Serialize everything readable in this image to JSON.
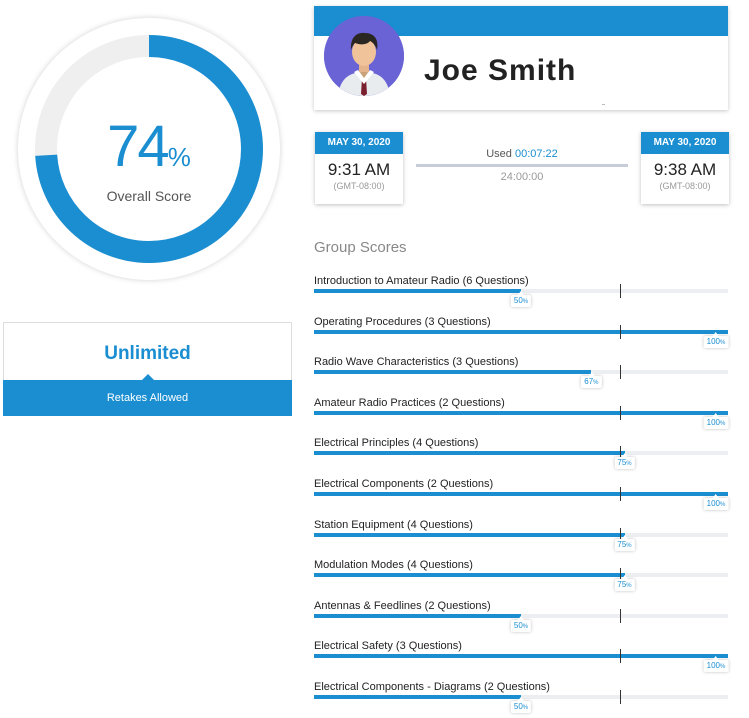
{
  "overall": {
    "value": "74",
    "percent": 74,
    "percent_sign": "%",
    "label": "Overall Score"
  },
  "retakes": {
    "title": "Unlimited",
    "subtitle": "Retakes Allowed"
  },
  "profile": {
    "name": "Joe Smith"
  },
  "start": {
    "date": "MAY 30, 2020",
    "time": "9:31 AM",
    "tz": "(GMT-08:00)"
  },
  "end": {
    "date": "MAY 30, 2020",
    "time": "9:38 AM",
    "tz": "(GMT-08:00)"
  },
  "usage": {
    "used_label": "Used",
    "used_value": "00:07:22",
    "limit": "24:00:00"
  },
  "group_scores": {
    "title": "Group Scores",
    "pass_mark_percent": 74,
    "items": [
      {
        "label": "Introduction to Amateur Radio (6 Questions)",
        "percent": 50
      },
      {
        "label": "Operating Procedures (3 Questions)",
        "percent": 100
      },
      {
        "label": "Radio Wave Characteristics (3 Questions)",
        "percent": 67
      },
      {
        "label": "Amateur Radio Practices (2 Questions)",
        "percent": 100
      },
      {
        "label": "Electrical Principles (4 Questions)",
        "percent": 75
      },
      {
        "label": "Electrical Components (2 Questions)",
        "percent": 100
      },
      {
        "label": "Station Equipment (4 Questions)",
        "percent": 75
      },
      {
        "label": "Modulation Modes (4 Questions)",
        "percent": 75
      },
      {
        "label": "Antennas & Feedlines (2 Questions)",
        "percent": 50
      },
      {
        "label": "Electrical Safety (3 Questions)",
        "percent": 100
      },
      {
        "label": "Electrical Components - Diagrams (2 Questions)",
        "percent": 50
      }
    ]
  },
  "colors": {
    "accent": "#1a8ed1",
    "track": "#eceef1"
  }
}
